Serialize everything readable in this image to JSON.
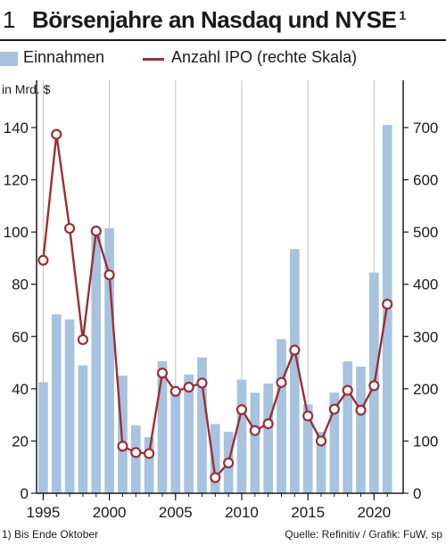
{
  "header": {
    "number": "1",
    "title": "Börsenjahre an Nasdaq und NYSE",
    "footnote_marker": "1"
  },
  "legend": {
    "bars": "Einnahmen",
    "line": "Anzahl IPO (rechte Skala)"
  },
  "unit_label": "in Mrd. $",
  "footer": {
    "note_marker": "1)",
    "note": "Bis Ende Oktober",
    "source": "Quelle: Refinitiv / Grafik: FuW, sp"
  },
  "colors": {
    "bars": "#a7c3df",
    "line": "#9b2f35",
    "grid": "#bfbfbf",
    "axis": "#1a1a1a"
  },
  "chart_data": {
    "type": "bar",
    "x": [
      1995,
      1996,
      1997,
      1998,
      1999,
      2000,
      2001,
      2002,
      2003,
      2004,
      2005,
      2006,
      2007,
      2008,
      2009,
      2010,
      2011,
      2012,
      2013,
      2014,
      2015,
      2016,
      2017,
      2018,
      2019,
      2020,
      2021
    ],
    "series": [
      {
        "name": "Einnahmen",
        "type": "bar",
        "axis": "left",
        "values": [
          42.5,
          68.5,
          66.5,
          49,
          100.5,
          101.5,
          45,
          26,
          21.5,
          50.5,
          39,
          45.5,
          52,
          26.5,
          23.5,
          43.5,
          38.5,
          42,
          59,
          93.5,
          34,
          23.5,
          38.5,
          50.5,
          48.5,
          84.5,
          141
        ]
      },
      {
        "name": "Anzahl IPO (rechte Skala)",
        "type": "line",
        "axis": "right",
        "values": [
          446,
          687,
          507,
          294,
          502,
          418,
          90,
          78,
          76,
          230,
          195,
          203,
          211,
          30,
          58,
          160,
          120,
          133,
          212,
          274,
          148,
          100,
          161,
          197,
          159,
          206,
          362
        ]
      }
    ],
    "ylim_left": [
      0,
      140
    ],
    "yticks_left": [
      0,
      20,
      40,
      60,
      80,
      100,
      120,
      140
    ],
    "ylim_right": [
      0,
      700
    ],
    "yticks_right": [
      0,
      100,
      200,
      300,
      400,
      500,
      600,
      700
    ],
    "xticks": [
      1995,
      2000,
      2005,
      2010,
      2015,
      2020
    ],
    "grid": "vertical at x ticks",
    "legend_position": "top-left"
  }
}
